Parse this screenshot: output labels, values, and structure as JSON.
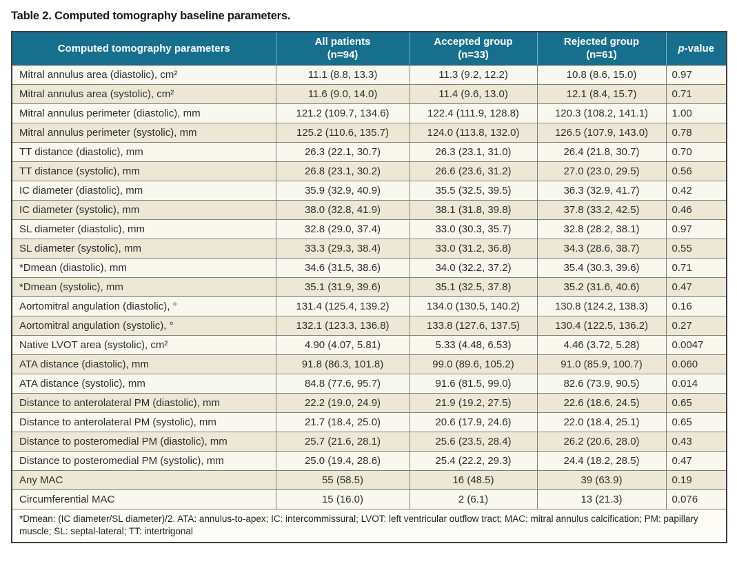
{
  "title": "Table 2. Computed tomography baseline parameters.",
  "table": {
    "columns": [
      {
        "label": "Computed tomography parameters"
      },
      {
        "label": "All patients",
        "sub": "(n=94)"
      },
      {
        "label": "Accepted group",
        "sub": "(n=33)"
      },
      {
        "label": "Rejected group",
        "sub": "(n=61)"
      },
      {
        "p": "p",
        "rest": "-value"
      }
    ],
    "rows": [
      [
        "Mitral annulus area (diastolic), cm²",
        "11.1 (8.8, 13.3)",
        "11.3 (9.2, 12.2)",
        "10.8 (8.6, 15.0)",
        "0.97"
      ],
      [
        "Mitral annulus area (systolic), cm²",
        "11.6 (9.0, 14.0)",
        "11.4 (9.6, 13.0)",
        "12.1 (8.4, 15.7)",
        "0.71"
      ],
      [
        "Mitral annulus perimeter (diastolic), mm",
        "121.2 (109.7, 134.6)",
        "122.4 (111.9, 128.8)",
        "120.3 (108.2, 141.1)",
        "1.00"
      ],
      [
        "Mitral annulus perimeter (systolic), mm",
        "125.2 (110.6, 135.7)",
        "124.0 (113.8, 132.0)",
        "126.5 (107.9, 143.0)",
        "0.78"
      ],
      [
        "TT distance (diastolic), mm",
        "26.3 (22.1, 30.7)",
        "26.3 (23.1, 31.0)",
        "26.4 (21.8, 30.7)",
        "0.70"
      ],
      [
        "TT distance (systolic), mm",
        "26.8 (23.1, 30.2)",
        "26.6 (23.6, 31.2)",
        "27.0 (23.0, 29.5)",
        "0.56"
      ],
      [
        "IC diameter (diastolic), mm",
        "35.9 (32.9, 40.9)",
        "35.5 (32.5, 39.5)",
        "36.3 (32.9, 41.7)",
        "0.42"
      ],
      [
        "IC diameter (systolic), mm",
        "38.0 (32.8, 41.9)",
        "38.1 (31.8, 39.8)",
        "37.8 (33.2, 42.5)",
        "0.46"
      ],
      [
        "SL diameter (diastolic), mm",
        "32.8 (29.0, 37.4)",
        "33.0 (30.3, 35.7)",
        "32.8 (28.2, 38.1)",
        "0.97"
      ],
      [
        "SL diameter (systolic), mm",
        "33.3 (29.3, 38.4)",
        "33.0 (31.2, 36.8)",
        "34.3 (28.6, 38.7)",
        "0.55"
      ],
      [
        "*Dmean (diastolic), mm",
        "34.6 (31.5, 38.6)",
        "34.0 (32.2, 37.2)",
        "35.4 (30.3, 39.6)",
        "0.71"
      ],
      [
        "*Dmean (systolic), mm",
        "35.1 (31.9, 39.6)",
        "35.1 (32.5, 37.8)",
        "35.2 (31.6, 40.6)",
        "0.47"
      ],
      [
        "Aortomitral angulation (diastolic), °",
        "131.4 (125.4, 139.2)",
        "134.0 (130.5, 140.2)",
        "130.8 (124.2, 138.3)",
        "0.16"
      ],
      [
        "Aortomitral angulation (systolic), °",
        "132.1 (123.3, 136.8)",
        "133.8 (127.6, 137.5)",
        "130.4 (122.5, 136.2)",
        "0.27"
      ],
      [
        "Native LVOT area (systolic), cm²",
        "4.90 (4.07, 5.81)",
        "5.33 (4.48, 6.53)",
        "4.46 (3.72, 5.28)",
        "0.0047"
      ],
      [
        "ATA distance (diastolic), mm",
        "91.8 (86.3, 101.8)",
        "99.0 (89.6, 105.2)",
        "91.0 (85.9, 100.7)",
        "0.060"
      ],
      [
        "ATA distance (systolic), mm",
        "84.8 (77.6, 95.7)",
        "91.6 (81.5, 99.0)",
        "82.6 (73.9, 90.5)",
        "0.014"
      ],
      [
        "Distance to anterolateral PM (diastolic), mm",
        "22.2 (19.0, 24.9)",
        "21.9 (19.2, 27.5)",
        "22.6 (18.6, 24.5)",
        "0.65"
      ],
      [
        "Distance to anterolateral PM (systolic), mm",
        "21.7 (18.4, 25.0)",
        "20.6 (17.9, 24.6)",
        "22.0 (18.4, 25.1)",
        "0.65"
      ],
      [
        "Distance to posteromedial PM (diastolic), mm",
        "25.7 (21.6, 28.1)",
        "25.6 (23.5, 28.4)",
        "26.2 (20.6, 28.0)",
        "0.43"
      ],
      [
        "Distance to posteromedial PM (systolic), mm",
        "25.0 (19.4, 28.6)",
        "25.4 (22.2, 29.3)",
        "24.4 (18.2, 28.5)",
        "0.47"
      ],
      [
        "Any MAC",
        "55 (58.5)",
        "16 (48.5)",
        "39 (63.9)",
        "0.19"
      ],
      [
        "Circumferential MAC",
        "15 (16.0)",
        "2 (6.1)",
        "13 (21.3)",
        "0.076"
      ]
    ],
    "footnote": "*Dmean: (IC diameter/SL diameter)/2. ATA: annulus-to-apex; IC: intercommissural; LVOT: left ventricular outflow tract; MAC: mitral annulus calcification; PM: papillary muscle; SL: septal-lateral; TT: intertrigonal"
  },
  "colors": {
    "header_bg": "#176f8e",
    "header_text": "#ffffff",
    "row_light_bg": "#f9f8ef",
    "row_cream_bg": "#ece8d5",
    "grid_line": "#808080",
    "outer_border": "#3e3e3e",
    "body_text": "#2e2e2e"
  }
}
